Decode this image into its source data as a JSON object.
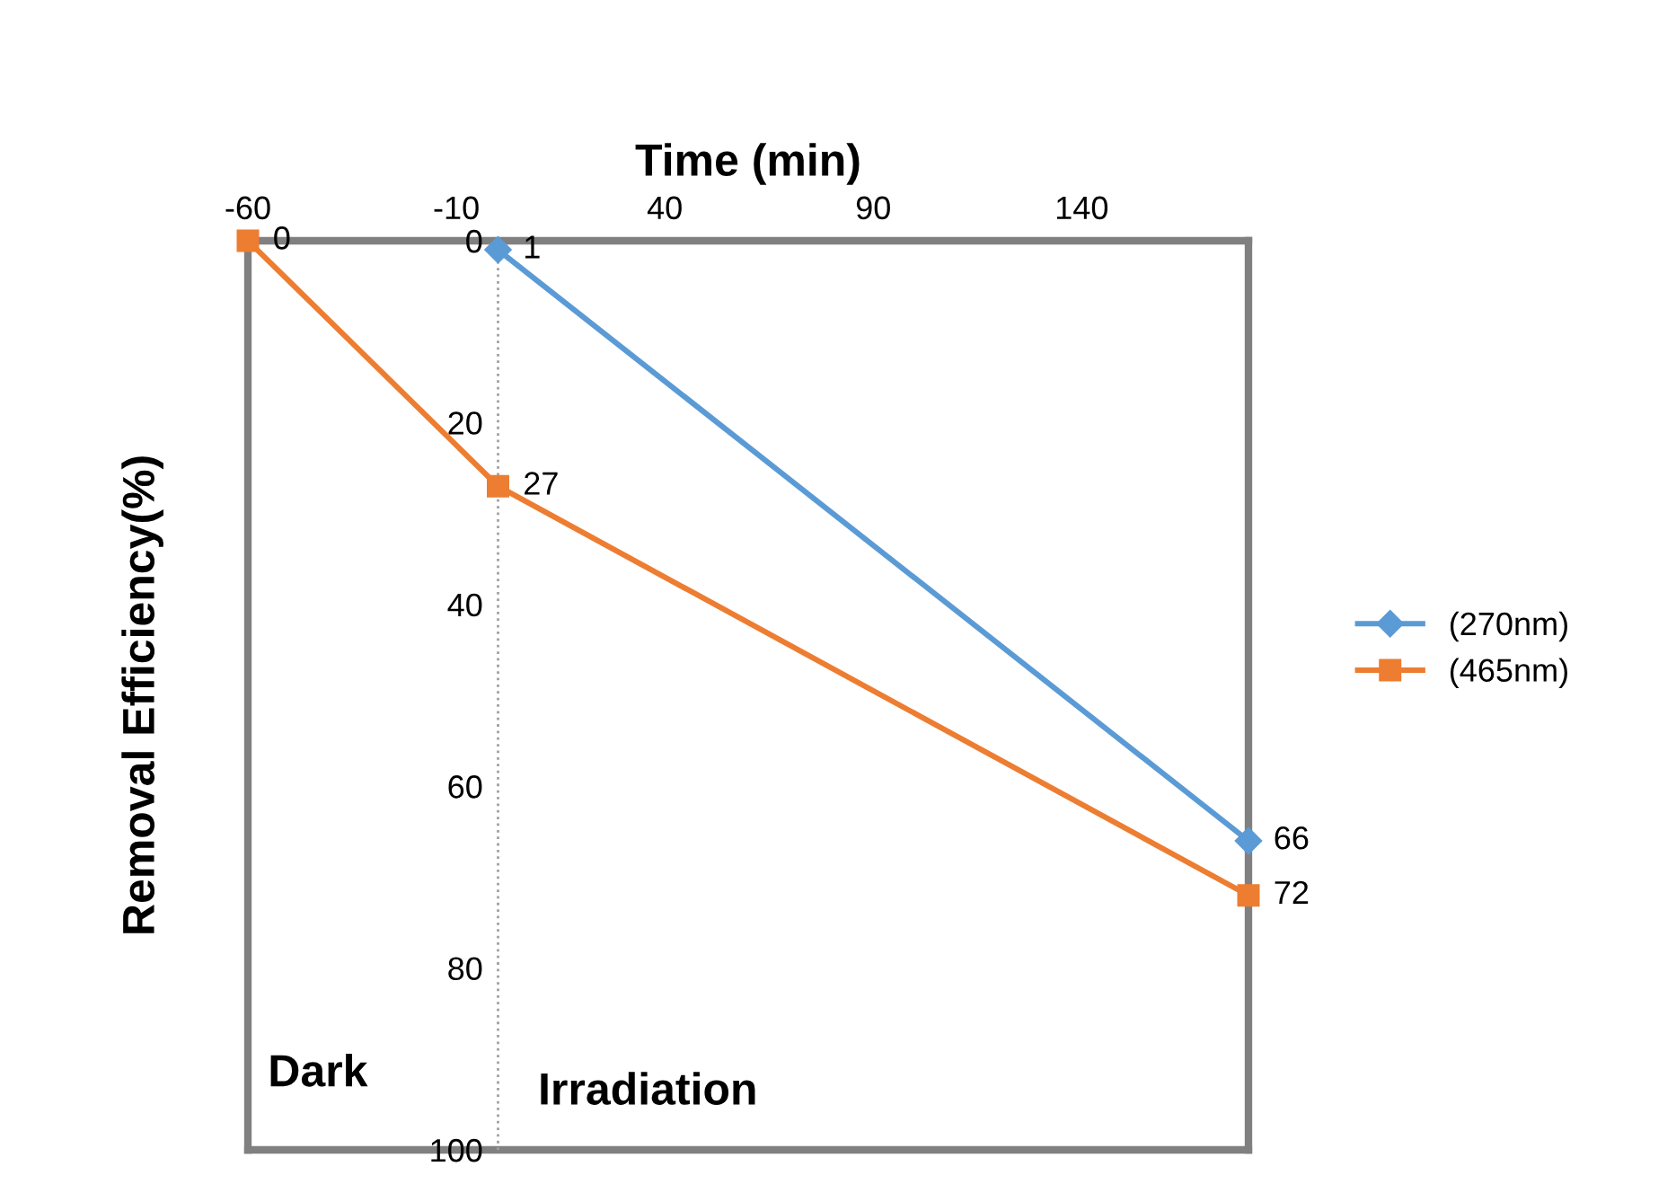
{
  "chart_data": {
    "type": "line",
    "xlabel": "Time (min)",
    "ylabel": "Removal Efficiency(%)",
    "xlim": [
      -60,
      180
    ],
    "xticks": [
      -60,
      -10,
      40,
      90,
      140
    ],
    "ylim": [
      100,
      0
    ],
    "yticks": [
      0,
      20,
      40,
      60,
      80,
      100
    ],
    "grid": false,
    "legend": "right",
    "data_labels": true,
    "series": [
      {
        "name": "(270nm)",
        "color": "#5b9bd5",
        "marker": "diamond",
        "x": [
          0,
          180
        ],
        "values": [
          1,
          66
        ]
      },
      {
        "name": "(465nm)",
        "color": "#ed7d31",
        "marker": "square",
        "x": [
          -60,
          0,
          180
        ],
        "values": [
          0,
          27,
          72
        ]
      }
    ],
    "ref_lines": [
      {
        "axis": "x",
        "value": 0,
        "color": "#a0a0a0",
        "line_style": "dotted"
      }
    ],
    "annotations": [
      "Dark",
      "Irradiation"
    ]
  }
}
